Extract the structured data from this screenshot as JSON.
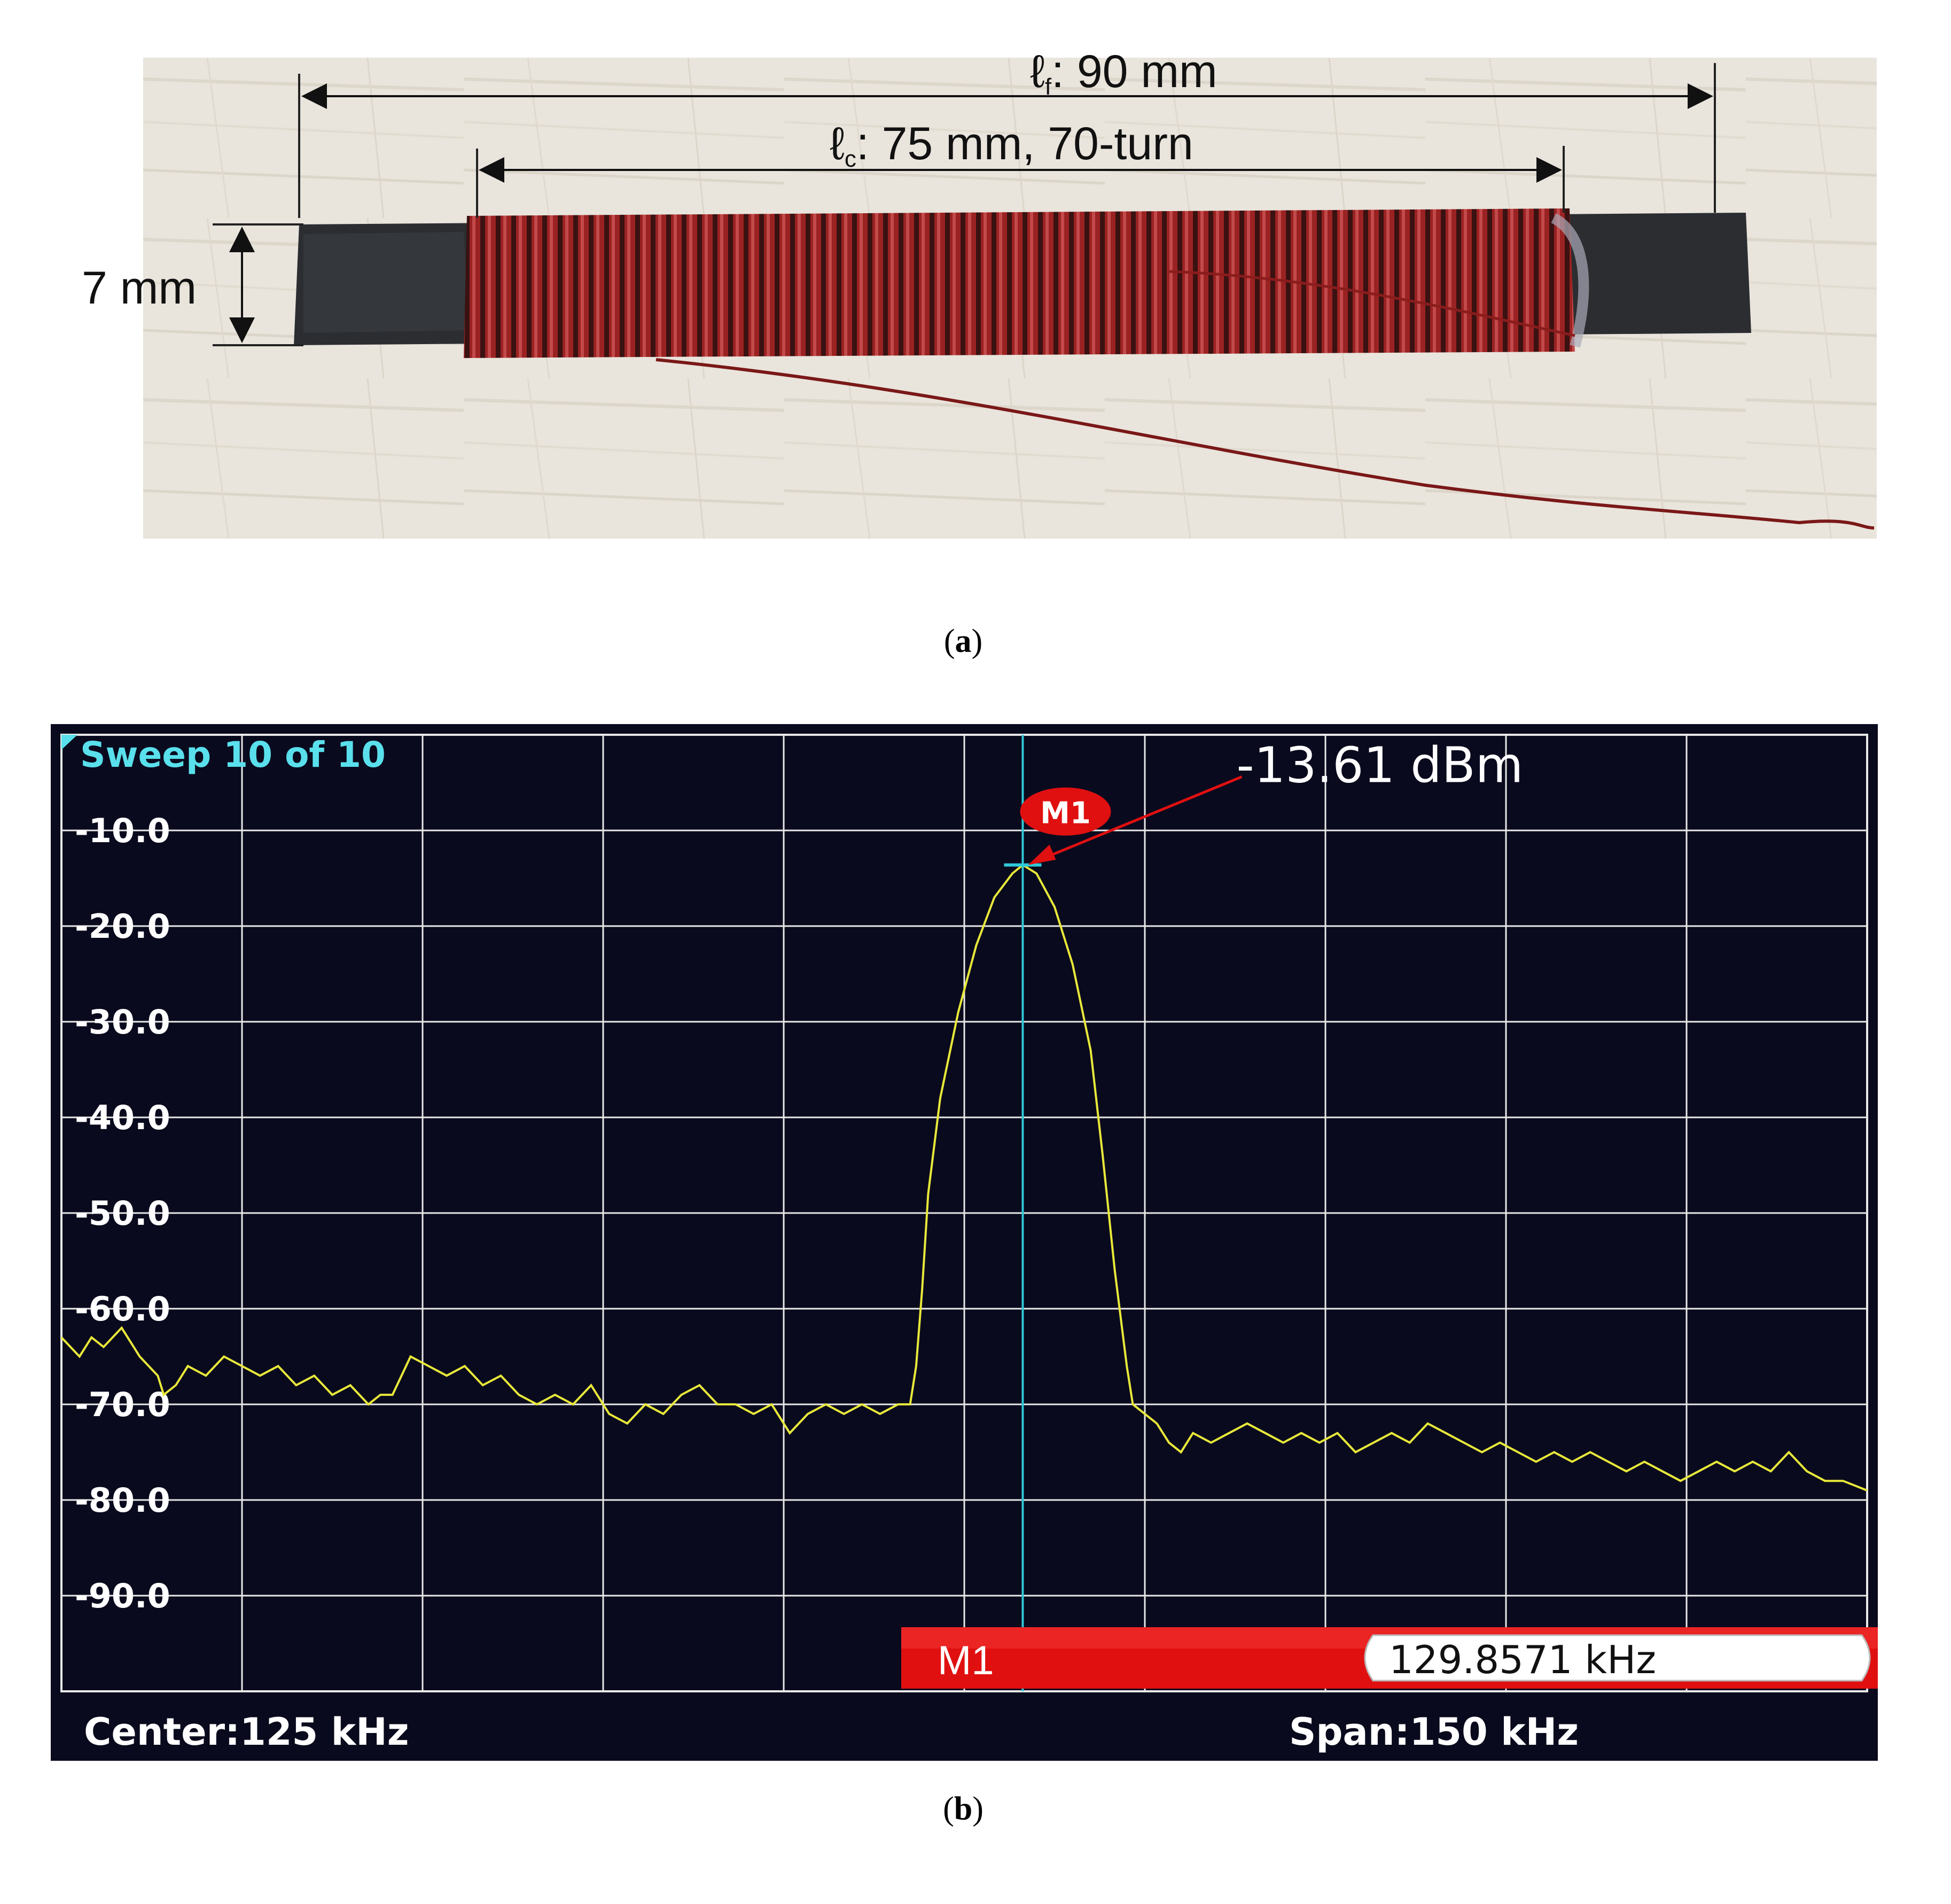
{
  "figure": {
    "caption_a": "a",
    "caption_b": "b"
  },
  "photo": {
    "ferrite_length_label": "ℓ",
    "ferrite_length_sub": "f",
    "ferrite_length_value": ": 90 mm",
    "coil_length_label": "ℓ",
    "coil_length_sub": "c",
    "coil_length_value": ": 75 mm, 70-turn",
    "width_label": "7 mm",
    "colors": {
      "background": "#e9e4dc",
      "ferrite": "#2b2d31",
      "wire": "#8a1c1c"
    }
  },
  "spectrum": {
    "sweep_label": "Sweep 10 of 10",
    "center_label": "Center:125 kHz",
    "span_label": "Span:150 kHz",
    "marker_name": "M1",
    "marker_frequency": "129.8571 kHz",
    "peak_annotation": "-13.61 dBm",
    "colors": {
      "background": "#0a0a1e",
      "grid": "#e8e8e8",
      "trace": "#e8e83a",
      "marker_line": "#2fc8d8",
      "marker_red": "#e01010",
      "sweep_text": "#59e0ec"
    }
  },
  "chart_data": {
    "type": "line",
    "title": "",
    "xlabel": "",
    "ylabel": "",
    "x_unit": "kHz",
    "y_unit": "dBm",
    "xlim": [
      50,
      200
    ],
    "ylim": [
      -100,
      0
    ],
    "y_tick_labels": [
      "-10.0",
      "-20.0",
      "-30.0",
      "-40.0",
      "-50.0",
      "-60.0",
      "-70.0",
      "-80.0",
      "-90.0"
    ],
    "y_ticks": [
      -10,
      -20,
      -30,
      -40,
      -50,
      -60,
      -70,
      -80,
      -90
    ],
    "x_grid_divisions": 10,
    "grid": true,
    "marker": {
      "name": "M1",
      "x": 129.8571,
      "y": -13.61
    },
    "series": [
      {
        "points": [
          [
            50.0,
            -63
          ],
          [
            51.5,
            -65
          ],
          [
            52.5,
            -63
          ],
          [
            53.5,
            -64
          ],
          [
            55.0,
            -62
          ],
          [
            56.5,
            -65
          ],
          [
            58.0,
            -67
          ],
          [
            58.5,
            -69
          ],
          [
            59.5,
            -68
          ],
          [
            60.5,
            -66
          ],
          [
            62.0,
            -67
          ],
          [
            63.5,
            -65
          ],
          [
            65.0,
            -66
          ],
          [
            66.5,
            -67
          ],
          [
            68.0,
            -66
          ],
          [
            69.5,
            -68
          ],
          [
            71.0,
            -67
          ],
          [
            72.5,
            -69
          ],
          [
            74.0,
            -68
          ],
          [
            75.5,
            -70
          ],
          [
            76.5,
            -69
          ],
          [
            77.5,
            -69
          ],
          [
            79.0,
            -65
          ],
          [
            80.5,
            -66
          ],
          [
            82.0,
            -67
          ],
          [
            83.5,
            -66
          ],
          [
            85.0,
            -68
          ],
          [
            86.5,
            -67
          ],
          [
            88.0,
            -69
          ],
          [
            89.5,
            -70
          ],
          [
            91.0,
            -69
          ],
          [
            92.5,
            -70
          ],
          [
            94.0,
            -68
          ],
          [
            95.5,
            -71
          ],
          [
            97.0,
            -72
          ],
          [
            98.5,
            -70
          ],
          [
            100.0,
            -71
          ],
          [
            101.5,
            -69
          ],
          [
            103.0,
            -68
          ],
          [
            104.5,
            -70
          ],
          [
            106.0,
            -70
          ],
          [
            107.5,
            -71
          ],
          [
            109.0,
            -70
          ],
          [
            110.5,
            -73
          ],
          [
            112.0,
            -71
          ],
          [
            113.5,
            -70
          ],
          [
            115.0,
            -71
          ],
          [
            116.5,
            -70
          ],
          [
            118.0,
            -71
          ],
          [
            119.5,
            -70
          ],
          [
            120.5,
            -70
          ],
          [
            121.0,
            -66
          ],
          [
            121.5,
            -58
          ],
          [
            122.0,
            -48
          ],
          [
            123.0,
            -38
          ],
          [
            124.5,
            -29
          ],
          [
            126.0,
            -22
          ],
          [
            127.5,
            -17
          ],
          [
            129.0,
            -14.5
          ],
          [
            129.86,
            -13.61
          ],
          [
            131.0,
            -14.5
          ],
          [
            132.5,
            -18
          ],
          [
            134.0,
            -24
          ],
          [
            135.5,
            -33
          ],
          [
            136.5,
            -44
          ],
          [
            137.5,
            -56
          ],
          [
            138.5,
            -66
          ],
          [
            139.0,
            -70
          ],
          [
            140.0,
            -71
          ],
          [
            141.0,
            -72
          ],
          [
            142.0,
            -74
          ],
          [
            143.0,
            -75
          ],
          [
            144.0,
            -73
          ],
          [
            145.5,
            -74
          ],
          [
            147.0,
            -73
          ],
          [
            148.5,
            -72
          ],
          [
            150.0,
            -73
          ],
          [
            151.5,
            -74
          ],
          [
            153.0,
            -73
          ],
          [
            154.5,
            -74
          ],
          [
            156.0,
            -73
          ],
          [
            157.5,
            -75
          ],
          [
            159.0,
            -74
          ],
          [
            160.5,
            -73
          ],
          [
            162.0,
            -74
          ],
          [
            163.5,
            -72
          ],
          [
            165.0,
            -73
          ],
          [
            166.5,
            -74
          ],
          [
            168.0,
            -75
          ],
          [
            169.5,
            -74
          ],
          [
            171.0,
            -75
          ],
          [
            172.5,
            -76
          ],
          [
            174.0,
            -75
          ],
          [
            175.5,
            -76
          ],
          [
            177.0,
            -75
          ],
          [
            178.5,
            -76
          ],
          [
            180.0,
            -77
          ],
          [
            181.5,
            -76
          ],
          [
            183.0,
            -77
          ],
          [
            184.5,
            -78
          ],
          [
            186.0,
            -77
          ],
          [
            187.5,
            -76
          ],
          [
            189.0,
            -77
          ],
          [
            190.5,
            -76
          ],
          [
            192.0,
            -77
          ],
          [
            193.5,
            -75
          ],
          [
            195.0,
            -77
          ],
          [
            196.5,
            -78
          ],
          [
            198.0,
            -78
          ],
          [
            200.0,
            -79
          ]
        ]
      }
    ]
  }
}
